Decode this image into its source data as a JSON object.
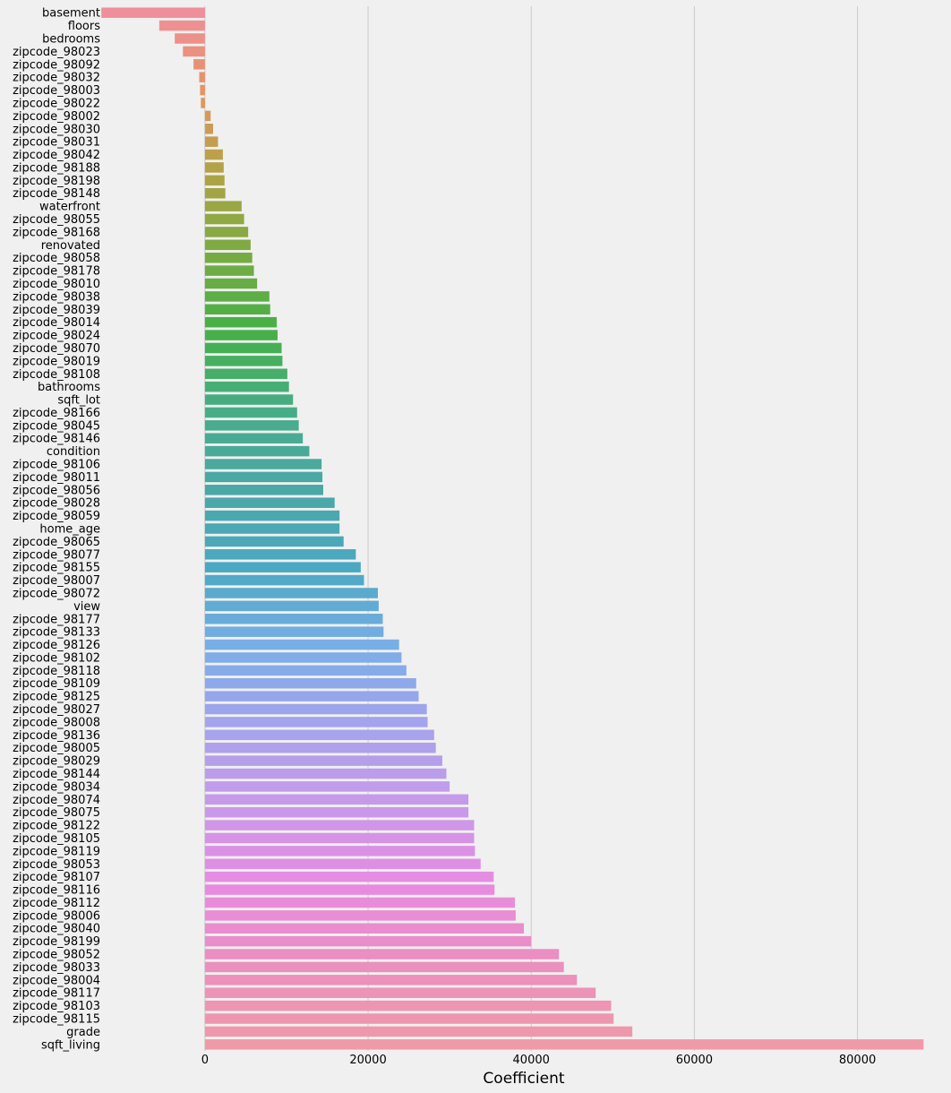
{
  "chart_data": {
    "type": "bar",
    "orientation": "horizontal",
    "title": "",
    "xlabel": "Coefficient",
    "ylabel": "",
    "xlim": [
      -12500,
      88500
    ],
    "xticks": [
      0,
      20000,
      40000,
      60000,
      80000
    ],
    "xtick_labels": [
      "0",
      "20000",
      "40000",
      "60000",
      "80000"
    ],
    "grid": "vertical",
    "categories": [
      "basement",
      "floors",
      "bedrooms",
      "zipcode_98023",
      "zipcode_98092",
      "zipcode_98032",
      "zipcode_98003",
      "zipcode_98022",
      "zipcode_98002",
      "zipcode_98030",
      "zipcode_98031",
      "zipcode_98042",
      "zipcode_98188",
      "zipcode_98198",
      "zipcode_98148",
      "waterfront",
      "zipcode_98055",
      "zipcode_98168",
      "renovated",
      "zipcode_98058",
      "zipcode_98178",
      "zipcode_98010",
      "zipcode_98038",
      "zipcode_98039",
      "zipcode_98014",
      "zipcode_98024",
      "zipcode_98070",
      "zipcode_98019",
      "zipcode_98108",
      "bathrooms",
      "sqft_lot",
      "zipcode_98166",
      "zipcode_98045",
      "zipcode_98146",
      "condition",
      "zipcode_98106",
      "zipcode_98011",
      "zipcode_98056",
      "zipcode_98028",
      "zipcode_98059",
      "home_age",
      "zipcode_98065",
      "zipcode_98077",
      "zipcode_98155",
      "zipcode_98007",
      "zipcode_98072",
      "view",
      "zipcode_98177",
      "zipcode_98133",
      "zipcode_98126",
      "zipcode_98102",
      "zipcode_98118",
      "zipcode_98109",
      "zipcode_98125",
      "zipcode_98027",
      "zipcode_98008",
      "zipcode_98136",
      "zipcode_98005",
      "zipcode_98029",
      "zipcode_98144",
      "zipcode_98034",
      "zipcode_98074",
      "zipcode_98075",
      "zipcode_98122",
      "zipcode_98105",
      "zipcode_98119",
      "zipcode_98053",
      "zipcode_98107",
      "zipcode_98116",
      "zipcode_98112",
      "zipcode_98006",
      "zipcode_98040",
      "zipcode_98199",
      "zipcode_98052",
      "zipcode_98033",
      "zipcode_98004",
      "zipcode_98117",
      "zipcode_98103",
      "zipcode_98115",
      "grade",
      "sqft_living"
    ],
    "values": [
      -12700,
      -5600,
      -3700,
      -2700,
      -1400,
      -700,
      -600,
      -500,
      700,
      1000,
      1600,
      2200,
      2300,
      2400,
      2500,
      4500,
      4800,
      5300,
      5600,
      5800,
      6000,
      6400,
      7900,
      8000,
      8800,
      8900,
      9400,
      9500,
      10100,
      10300,
      10800,
      11300,
      11500,
      12000,
      12800,
      14300,
      14400,
      14500,
      15900,
      16500,
      16500,
      17000,
      18500,
      19100,
      19500,
      21200,
      21300,
      21800,
      21900,
      23800,
      24100,
      24700,
      25900,
      26200,
      27200,
      27300,
      28100,
      28300,
      29100,
      29600,
      30000,
      32300,
      32300,
      33000,
      33000,
      33100,
      33800,
      35400,
      35500,
      38000,
      38100,
      39100,
      40000,
      43400,
      44000,
      45600,
      47900,
      49800,
      50100,
      52400,
      88100
    ],
    "color_stops": [
      "#f08f9c",
      "#e49460",
      "#b1a345",
      "#7bab43",
      "#45b046",
      "#47ad88",
      "#4aa8a6",
      "#4ba8c2",
      "#7aaee7",
      "#a6a3ec",
      "#c899ea",
      "#e88be1",
      "#ea8fbf",
      "#f09aa7"
    ]
  }
}
